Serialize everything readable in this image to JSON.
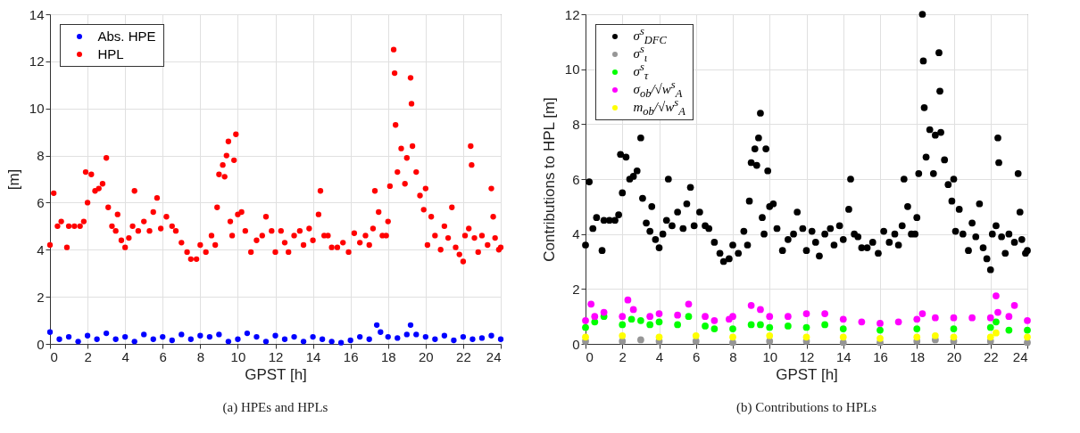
{
  "chart_data": [
    {
      "type": "scatter",
      "title": "(a) HPEs and HPLs",
      "xlabel": "GPST [h]",
      "ylabel": "[m]",
      "xlim": [
        0,
        24
      ],
      "xticks": [
        0,
        2,
        4,
        6,
        8,
        10,
        12,
        14,
        16,
        18,
        20,
        22,
        24
      ],
      "ylim": [
        0,
        14
      ],
      "yticks": [
        0,
        2,
        4,
        6,
        8,
        10,
        12,
        14
      ],
      "grid": true,
      "legend": "top left",
      "marker": "circle",
      "series": [
        {
          "name": "Abs. HPE",
          "color": "#0000ff",
          "x": [
            0,
            0.5,
            1,
            1.5,
            2,
            2.5,
            3,
            3.5,
            4,
            4.5,
            5,
            5.5,
            6,
            6.5,
            7,
            7.5,
            8,
            8.5,
            9,
            9.5,
            10,
            10.5,
            11,
            11.5,
            12,
            12.5,
            13,
            13.5,
            14,
            14.5,
            15,
            15.5,
            16,
            16.5,
            17,
            17.4,
            17.6,
            18,
            18.5,
            19,
            19.2,
            19.5,
            20,
            20.5,
            21,
            21.5,
            22,
            22.5,
            23,
            23.5,
            24
          ],
          "values": [
            0.5,
            0.2,
            0.3,
            0.1,
            0.35,
            0.2,
            0.45,
            0.2,
            0.3,
            0.1,
            0.4,
            0.2,
            0.3,
            0.15,
            0.4,
            0.2,
            0.35,
            0.3,
            0.4,
            0.1,
            0.2,
            0.45,
            0.3,
            0.1,
            0.35,
            0.2,
            0.3,
            0.1,
            0.3,
            0.2,
            0.1,
            0.05,
            0.15,
            0.3,
            0.2,
            0.8,
            0.5,
            0.3,
            0.25,
            0.4,
            0.8,
            0.4,
            0.3,
            0.2,
            0.35,
            0.15,
            0.3,
            0.2,
            0.25,
            0.35,
            0.2
          ]
        },
        {
          "name": "HPL",
          "color": "#ff0000",
          "x": [
            0,
            0.2,
            0.4,
            0.6,
            0.9,
            1,
            1.3,
            1.6,
            1.8,
            1.9,
            2,
            2.2,
            2.4,
            2.6,
            2.8,
            3,
            3.1,
            3.3,
            3.5,
            3.6,
            3.8,
            4,
            4.2,
            4.4,
            4.5,
            4.7,
            5,
            5.3,
            5.5,
            5.7,
            5.9,
            6.2,
            6.5,
            6.7,
            7,
            7.3,
            7.5,
            7.8,
            8,
            8.3,
            8.6,
            8.8,
            8.9,
            9,
            9.2,
            9.3,
            9.4,
            9.5,
            9.6,
            9.7,
            9.8,
            9.9,
            10,
            10.2,
            10.4,
            10.7,
            11,
            11.3,
            11.5,
            11.8,
            12,
            12.3,
            12.5,
            12.7,
            13,
            13.3,
            13.5,
            13.8,
            14,
            14.3,
            14.4,
            14.6,
            14.8,
            15,
            15.3,
            15.6,
            15.9,
            16.2,
            16.5,
            16.8,
            17,
            17.2,
            17.3,
            17.5,
            17.7,
            17.9,
            18,
            18.1,
            18.3,
            18.35,
            18.4,
            18.5,
            18.7,
            18.9,
            19,
            19.2,
            19.25,
            19.3,
            19.5,
            19.7,
            19.9,
            20,
            20.1,
            20.3,
            20.5,
            20.8,
            21,
            21.2,
            21.4,
            21.6,
            21.8,
            22,
            22.1,
            22.3,
            22.4,
            22.45,
            22.6,
            22.8,
            23,
            23.3,
            23.5,
            23.6,
            23.7,
            23.9,
            24
          ],
          "values": [
            4.2,
            6.4,
            5,
            5.2,
            4.1,
            5,
            5,
            5,
            5.2,
            7.3,
            6,
            7.2,
            6.5,
            6.6,
            6.8,
            7.9,
            5.8,
            5,
            4.8,
            5.5,
            4.4,
            4.1,
            4.5,
            5,
            6.5,
            4.8,
            5.2,
            4.8,
            5.6,
            6.2,
            4.9,
            5.4,
            5,
            4.8,
            4.3,
            3.9,
            3.6,
            3.6,
            4.2,
            3.9,
            4.6,
            4.2,
            5.8,
            7.2,
            7.6,
            7.1,
            8,
            8.6,
            5.2,
            4.6,
            7.8,
            8.9,
            5.5,
            5.6,
            4.8,
            3.9,
            4.4,
            4.6,
            5.4,
            4.8,
            3.9,
            4.8,
            4.3,
            3.9,
            4.6,
            4.8,
            4.2,
            4.9,
            4.4,
            5.5,
            6.5,
            4.6,
            4.6,
            4.1,
            4.1,
            4.3,
            3.9,
            4.7,
            4.3,
            4.6,
            4.2,
            4.9,
            6.5,
            5.6,
            4.6,
            4.6,
            5.2,
            6.7,
            12.5,
            11.5,
            9.3,
            7.3,
            8.3,
            6.8,
            7.9,
            11.3,
            10.2,
            8.4,
            7.3,
            6.3,
            5.7,
            6.6,
            4.2,
            5.4,
            4.6,
            4,
            5,
            4.5,
            5.8,
            4.1,
            3.8,
            3.5,
            4.6,
            4.9,
            8.4,
            7.6,
            4.5,
            3.9,
            4.6,
            4.2,
            6.6,
            5.4,
            4.5,
            4,
            4.1
          ]
        }
      ]
    },
    {
      "type": "scatter",
      "title": "(b) Contributions to HPLs",
      "xlabel": "GPST [h]",
      "ylabel": "Contributions to HPL [m]",
      "xlim": [
        0,
        24
      ],
      "xticks": [
        0,
        2,
        4,
        6,
        8,
        10,
        12,
        14,
        16,
        18,
        20,
        22,
        24
      ],
      "ylim": [
        0,
        12
      ],
      "yticks": [
        0,
        2,
        4,
        6,
        8,
        10,
        12
      ],
      "grid": true,
      "legend": "top left",
      "marker": "circle",
      "series": [
        {
          "name": "σ$^{s}$$_{DFC}$",
          "color": "#000000",
          "x": [
            0,
            0.2,
            0.4,
            0.6,
            0.9,
            1,
            1.3,
            1.6,
            1.8,
            1.9,
            2,
            2.2,
            2.4,
            2.6,
            2.8,
            3,
            3.1,
            3.3,
            3.5,
            3.6,
            3.8,
            4,
            4.2,
            4.4,
            4.5,
            4.7,
            5,
            5.3,
            5.5,
            5.7,
            5.9,
            6.2,
            6.5,
            6.7,
            7,
            7.3,
            7.5,
            7.8,
            8,
            8.3,
            8.6,
            8.8,
            8.9,
            9,
            9.2,
            9.3,
            9.4,
            9.5,
            9.6,
            9.7,
            9.8,
            9.9,
            10,
            10.2,
            10.4,
            10.7,
            11,
            11.3,
            11.5,
            11.8,
            12,
            12.3,
            12.5,
            12.7,
            13,
            13.3,
            13.5,
            13.8,
            14,
            14.3,
            14.4,
            14.6,
            14.8,
            15,
            15.3,
            15.6,
            15.9,
            16.2,
            16.5,
            16.8,
            17,
            17.2,
            17.3,
            17.5,
            17.7,
            17.9,
            18,
            18.1,
            18.3,
            18.35,
            18.4,
            18.5,
            18.7,
            18.9,
            19,
            19.2,
            19.25,
            19.3,
            19.5,
            19.7,
            19.9,
            20,
            20.1,
            20.3,
            20.5,
            20.8,
            21,
            21.2,
            21.4,
            21.6,
            21.8,
            22,
            22.1,
            22.3,
            22.4,
            22.45,
            22.6,
            22.8,
            23,
            23.3,
            23.5,
            23.6,
            23.7,
            23.9,
            24
          ],
          "values": [
            3.6,
            5.9,
            4.2,
            4.6,
            3.4,
            4.5,
            4.5,
            4.5,
            4.7,
            6.9,
            5.5,
            6.8,
            6,
            6.1,
            6.3,
            7.5,
            5.3,
            4.4,
            4.1,
            5,
            3.8,
            3.5,
            4,
            4.5,
            6,
            4.3,
            4.8,
            4.2,
            5.1,
            5.7,
            4.3,
            4.8,
            4.3,
            4.2,
            3.7,
            3.3,
            3,
            3.1,
            3.6,
            3.3,
            4.1,
            3.6,
            5.2,
            6.6,
            7.1,
            6.5,
            7.5,
            8.4,
            4.6,
            4,
            7.1,
            6.3,
            5,
            5.1,
            4.2,
            3.4,
            3.8,
            4,
            4.8,
            4.2,
            3.4,
            4.1,
            3.7,
            3.2,
            4,
            4.2,
            3.6,
            4.3,
            3.8,
            4.9,
            6,
            4,
            3.9,
            3.5,
            3.5,
            3.7,
            3.3,
            4.1,
            3.7,
            4,
            3.6,
            4.3,
            6,
            5,
            4,
            4,
            4.6,
            6.2,
            12,
            10.3,
            8.6,
            6.8,
            7.8,
            6.2,
            7.6,
            10.6,
            9.2,
            7.7,
            6.7,
            5.8,
            5.2,
            6,
            4.1,
            4.9,
            4,
            3.4,
            4.4,
            3.9,
            5.1,
            3.5,
            3.1,
            2.7,
            4,
            4.3,
            7.5,
            6.6,
            3.9,
            3.3,
            4,
            3.7,
            6.2,
            4.8,
            3.8,
            3.3,
            3.4
          ]
        },
        {
          "name": "σ$^{s}$$_{ι}$",
          "color": "#969696",
          "x": [
            0,
            2,
            3,
            4,
            6,
            8,
            10,
            12,
            14,
            16,
            18,
            19,
            20,
            22,
            24
          ],
          "values": [
            0.1,
            0.1,
            0.15,
            0.1,
            0.1,
            0.05,
            0.1,
            0.1,
            0.05,
            0.05,
            0.1,
            0.15,
            0.1,
            0.1,
            0.05
          ]
        },
        {
          "name": "σ$^{s}$$_{τ}$",
          "color": "#00ff00",
          "x": [
            0,
            0.5,
            1,
            2,
            2.5,
            3,
            3.5,
            4,
            5,
            5.6,
            6.5,
            7,
            8,
            9,
            9.5,
            10,
            11,
            12,
            13,
            14,
            16,
            18,
            20,
            22,
            22.3,
            23,
            24
          ],
          "values": [
            0.6,
            0.8,
            1,
            0.7,
            0.9,
            0.85,
            0.7,
            0.8,
            0.7,
            1,
            0.65,
            0.55,
            0.55,
            0.7,
            0.7,
            0.6,
            0.65,
            0.6,
            0.7,
            0.55,
            0.5,
            0.55,
            0.55,
            0.6,
            0.8,
            0.5,
            0.5
          ]
        },
        {
          "name": "σ$_{ob}$/√w$^{s}$$_{A}$",
          "color": "#ff00ff",
          "x": [
            0,
            0.3,
            0.5,
            1,
            2,
            2.3,
            2.6,
            3.5,
            4,
            5,
            5.6,
            6.5,
            7,
            7.8,
            8,
            9,
            9.5,
            10,
            11,
            12,
            13,
            14,
            15,
            16,
            17,
            18,
            18.3,
            19,
            20,
            21,
            22,
            22.3,
            22.4,
            23,
            23.3,
            24
          ],
          "values": [
            0.85,
            1.45,
            1,
            1.15,
            1,
            1.6,
            1.25,
            1,
            1.1,
            1.05,
            1.45,
            1,
            0.85,
            0.9,
            1,
            1.4,
            1.25,
            1,
            1,
            1.1,
            1.1,
            0.9,
            0.8,
            0.75,
            0.8,
            0.9,
            1.1,
            0.95,
            0.95,
            0.95,
            0.95,
            1.75,
            1.15,
            1,
            1.4,
            0.85
          ]
        },
        {
          "name": "m$_{ob}$/√w$^{s}$$_{A}$",
          "color": "#ffff00",
          "x": [
            0,
            2,
            4,
            6,
            8,
            10,
            12,
            14,
            16,
            18,
            19,
            20,
            22,
            22.3,
            24
          ],
          "values": [
            0.25,
            0.3,
            0.25,
            0.3,
            0.25,
            0.3,
            0.25,
            0.25,
            0.2,
            0.25,
            0.3,
            0.25,
            0.25,
            0.4,
            0.25
          ]
        }
      ]
    }
  ]
}
